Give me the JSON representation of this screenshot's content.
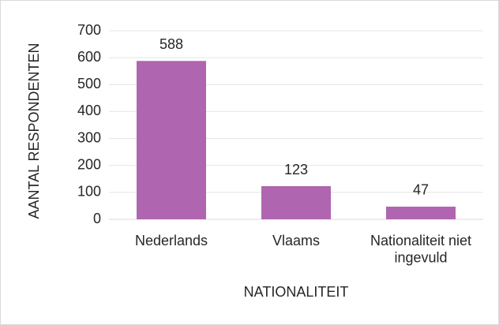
{
  "chart_data": {
    "type": "bar",
    "x_label": "NATIONALITEIT",
    "y_label": "AANTAL RESPONDENTEN",
    "categories": [
      "Nederlands",
      "Vlaams",
      "Nationaliteit niet ingevuld"
    ],
    "values": [
      588,
      123,
      47
    ],
    "color": "#b065b0",
    "ylim": [
      0,
      700
    ],
    "yticks": [
      0,
      100,
      200,
      300,
      400,
      500,
      600,
      700
    ],
    "grid": true
  }
}
